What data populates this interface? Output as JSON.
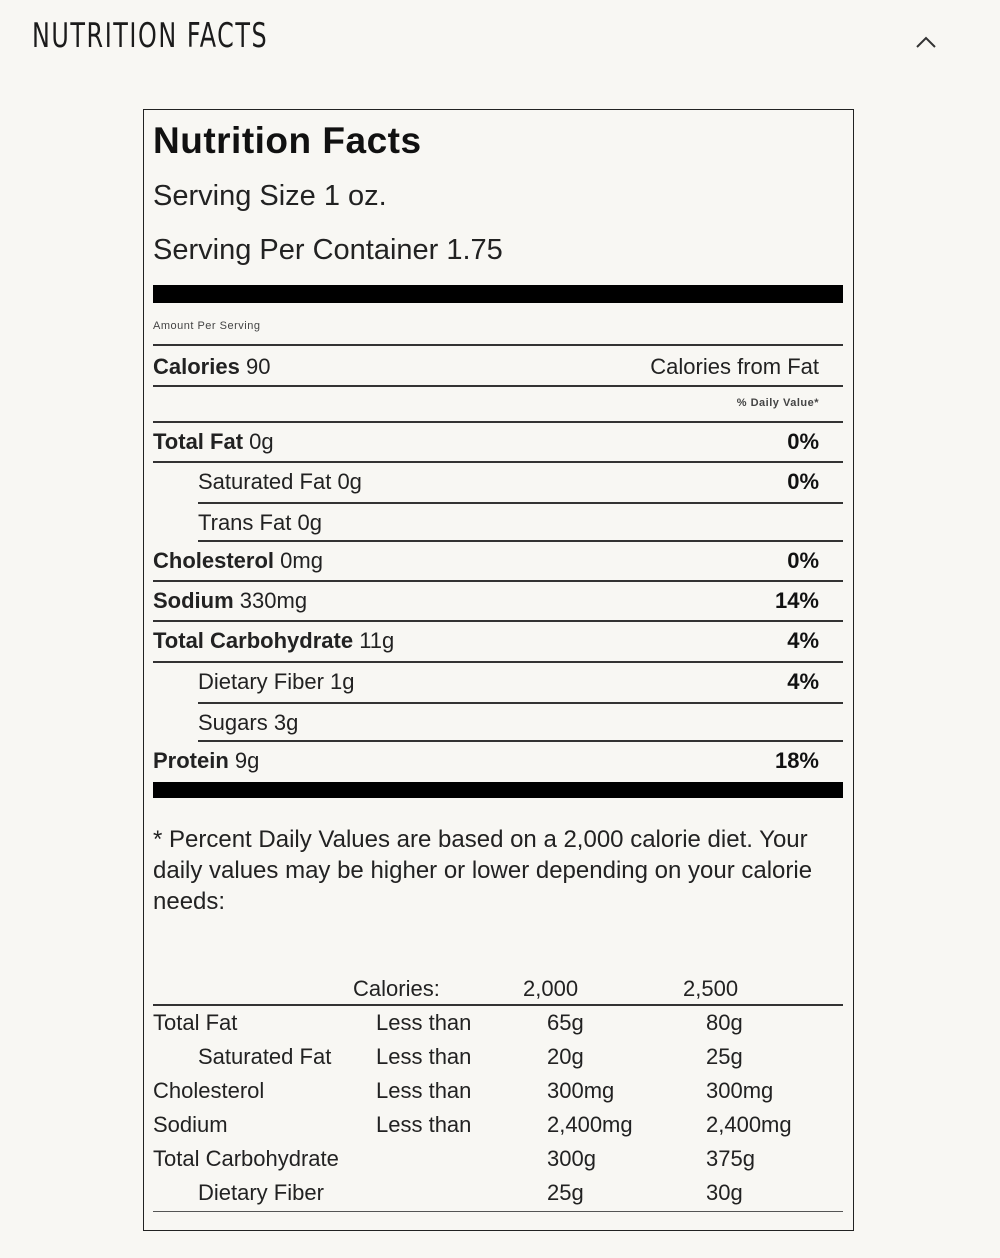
{
  "section": {
    "title": "NUTRITION FACTS"
  },
  "label": {
    "title": "Nutrition Facts",
    "serving_size": "Serving Size 1 oz.",
    "servings_per_container": "Serving Per Container 1.75",
    "amount_per_serving": "Amount Per Serving",
    "calories_label": "Calories",
    "calories_value": "90",
    "calories_from_fat": "Calories from Fat",
    "daily_value_header": "% Daily Value*",
    "rows": [
      {
        "name": "Total Fat",
        "amount": "0g",
        "dv": "0%",
        "bold": true
      },
      {
        "name": "Saturated Fat",
        "amount": "0g",
        "dv": "0%",
        "bold": false
      },
      {
        "name": "Trans Fat",
        "amount": "0g",
        "dv": "",
        "bold": false
      },
      {
        "name": "Cholesterol",
        "amount": "0mg",
        "dv": "0%",
        "bold": true
      },
      {
        "name": "Sodium",
        "amount": "330mg",
        "dv": "14%",
        "bold": true
      },
      {
        "name": "Total Carbohydrate",
        "amount": "11g",
        "dv": "4%",
        "bold": true
      },
      {
        "name": "Dietary Fiber",
        "amount": "1g",
        "dv": "4%",
        "bold": false
      },
      {
        "name": "Sugars",
        "amount": "3g",
        "dv": "",
        "bold": false
      },
      {
        "name": "Protein",
        "amount": "9g",
        "dv": "18%",
        "bold": true
      }
    ],
    "footnote": "* Percent Daily Values are based on a 2,000 calorie diet. Your daily values may be higher or lower depending on your calorie needs:",
    "dv_table": {
      "calories_label": "Calories:",
      "col1": "2,000",
      "col2": "2,500",
      "rows": [
        {
          "name": "Total Fat",
          "qual": "Less than",
          "v1": "65g",
          "v2": "80g"
        },
        {
          "name": "Saturated Fat",
          "qual": "Less than",
          "v1": "20g",
          "v2": "25g"
        },
        {
          "name": "Cholesterol",
          "qual": "Less than",
          "v1": "300mg",
          "v2": "300mg"
        },
        {
          "name": "Sodium",
          "qual": "Less than",
          "v1": "2,400mg",
          "v2": "2,400mg"
        },
        {
          "name": "Total Carbohydrate",
          "qual": "",
          "v1": "300g",
          "v2": "375g"
        },
        {
          "name": "Dietary Fiber",
          "qual": "",
          "v1": "25g",
          "v2": "30g"
        }
      ]
    }
  }
}
